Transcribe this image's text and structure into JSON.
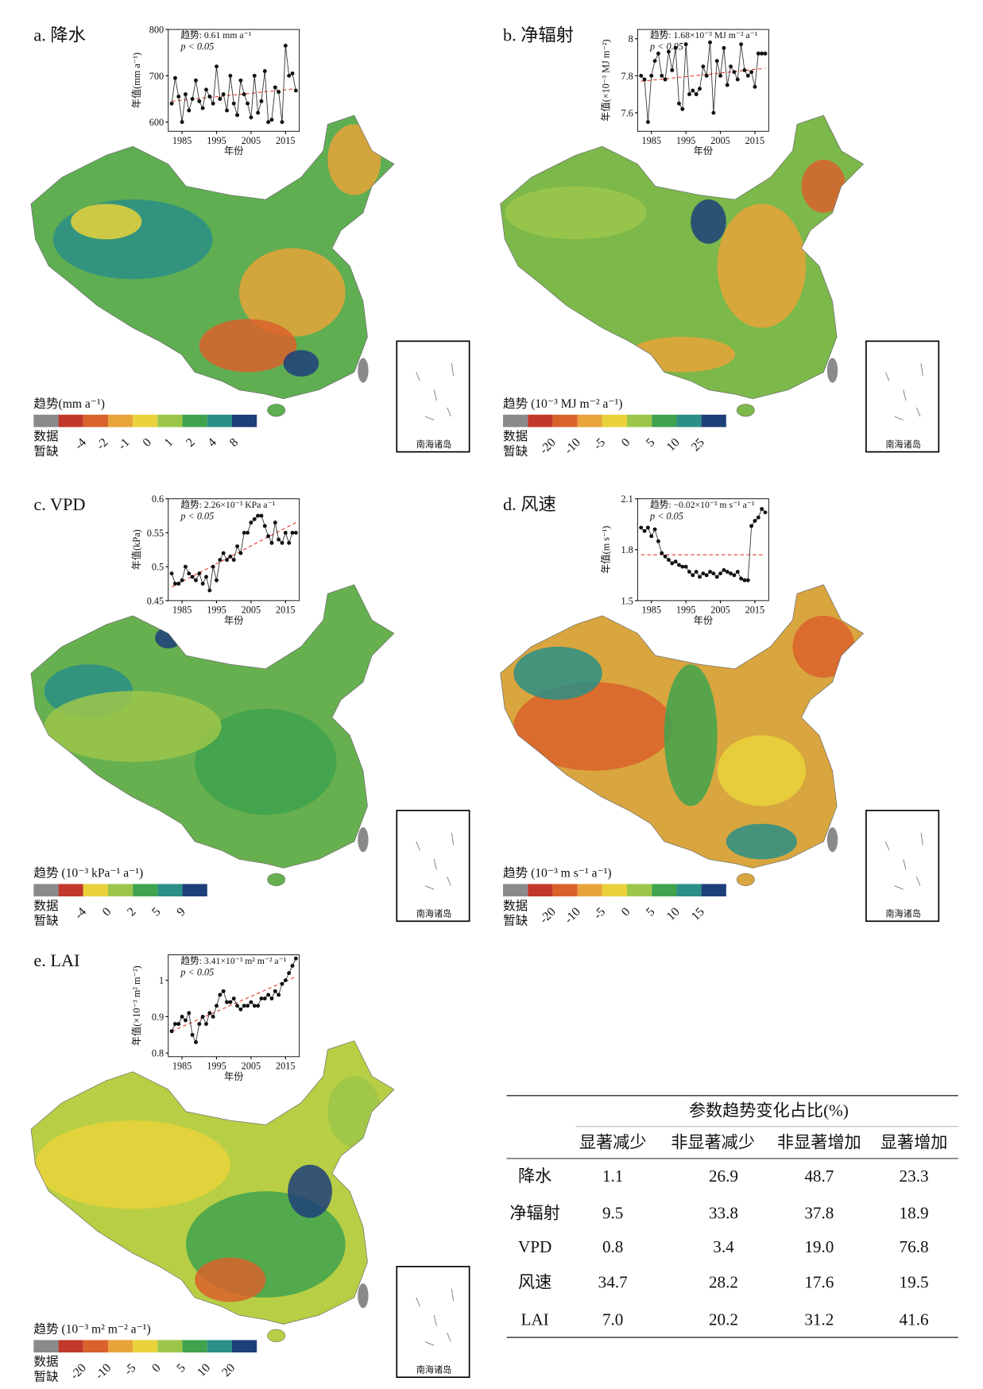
{
  "panels": [
    {
      "title": "a. 降水",
      "legend": {
        "label": "趋势(mm a⁻¹)",
        "missing": [
          "数据",
          "暂缺"
        ],
        "colors": [
          "#8a8a8a",
          "#c0392b",
          "#d9622b",
          "#e8a33a",
          "#e9d23b",
          "#9cc64a",
          "#3fa34d",
          "#2a8f86",
          "#1d3f7a"
        ],
        "ticks": [
          -4,
          -2,
          -1,
          0,
          1,
          2,
          4,
          8
        ]
      },
      "inset": {
        "type": "line",
        "stat": "趋势: 0.61 mm a⁻¹",
        "p": "p < 0.05",
        "ylabel": "年值(mm a⁻¹)",
        "xlabel": "年份",
        "xlim": [
          1981,
          2019
        ],
        "xticks": [
          1985,
          1995,
          2005,
          2015
        ],
        "ylim": [
          580,
          800
        ],
        "yticks": [
          600,
          700,
          800
        ],
        "x": [
          1982,
          1983,
          1984,
          1985,
          1986,
          1987,
          1988,
          1989,
          1990,
          1991,
          1992,
          1993,
          1994,
          1995,
          1996,
          1997,
          1998,
          1999,
          2000,
          2001,
          2002,
          2003,
          2004,
          2005,
          2006,
          2007,
          2008,
          2009,
          2010,
          2011,
          2012,
          2013,
          2014,
          2015,
          2016,
          2017,
          2018
        ],
        "values": [
          640,
          695,
          655,
          600,
          660,
          625,
          650,
          690,
          645,
          630,
          670,
          655,
          640,
          720,
          650,
          660,
          625,
          700,
          640,
          615,
          690,
          660,
          640,
          610,
          700,
          620,
          645,
          710,
          600,
          605,
          675,
          665,
          600,
          765,
          700,
          705,
          668
        ],
        "trend": [
          645,
          672
        ]
      }
    },
    {
      "title": "b. 净辐射",
      "legend": {
        "label": "趋势 (10⁻³ MJ m⁻² a⁻¹)",
        "missing": [
          "数据",
          "暂缺"
        ],
        "colors": [
          "#8a8a8a",
          "#c0392b",
          "#d9622b",
          "#e8a33a",
          "#e9d23b",
          "#9cc64a",
          "#3fa34d",
          "#2a8f86",
          "#1d3f7a"
        ],
        "ticks": [
          -20,
          -10,
          -5,
          0,
          5,
          10,
          25
        ]
      },
      "inset": {
        "type": "line",
        "stat": "趋势: 1.68×10⁻³ MJ m⁻² a⁻¹",
        "p": "p < 0.05",
        "ylabel": "年值(×10⁻³ MJ m⁻²)",
        "xlabel": "年份",
        "xlim": [
          1981,
          2019
        ],
        "xticks": [
          1985,
          1995,
          2005,
          2015
        ],
        "ylim": [
          7.5,
          8.05
        ],
        "yticks": [
          7.6,
          7.8,
          8.0
        ],
        "x": [
          1982,
          1983,
          1984,
          1985,
          1986,
          1987,
          1988,
          1989,
          1990,
          1991,
          1992,
          1993,
          1994,
          1995,
          1996,
          1997,
          1998,
          1999,
          2000,
          2001,
          2002,
          2003,
          2004,
          2005,
          2006,
          2007,
          2008,
          2009,
          2010,
          2011,
          2012,
          2013,
          2014,
          2015,
          2016,
          2017,
          2018
        ],
        "values": [
          7.8,
          7.78,
          7.55,
          7.8,
          7.88,
          7.92,
          7.8,
          7.78,
          7.93,
          7.83,
          7.95,
          7.65,
          7.62,
          7.97,
          7.7,
          7.72,
          7.7,
          7.73,
          7.85,
          7.8,
          7.98,
          7.6,
          7.88,
          7.8,
          7.95,
          7.75,
          7.85,
          7.82,
          7.78,
          7.97,
          7.83,
          7.8,
          7.82,
          7.74,
          7.92,
          7.92,
          7.92
        ],
        "trend": [
          7.77,
          7.84
        ]
      }
    },
    {
      "title": "c. VPD",
      "legend": {
        "label": "趋势 (10⁻³ kPa⁻¹ a⁻¹)",
        "missing": [
          "数据",
          "暂缺"
        ],
        "colors": [
          "#8a8a8a",
          "#c0392b",
          "#e9d23b",
          "#9cc64a",
          "#3fa34d",
          "#2a8f86",
          "#1d3f7a"
        ],
        "ticks": [
          -4,
          0,
          2,
          5,
          9
        ]
      },
      "inset": {
        "type": "line",
        "stat": "趋势: 2.26×10⁻³ KPa a⁻¹",
        "p": "p < 0.05",
        "ylabel": "年值(kPa)",
        "xlabel": "年份",
        "xlim": [
          1981,
          2019
        ],
        "xticks": [
          1985,
          1995,
          2005,
          2015
        ],
        "ylim": [
          0.45,
          0.6
        ],
        "yticks": [
          0.45,
          0.5,
          0.55,
          0.6
        ],
        "x": [
          1982,
          1983,
          1984,
          1985,
          1986,
          1987,
          1988,
          1989,
          1990,
          1991,
          1992,
          1993,
          1994,
          1995,
          1996,
          1997,
          1998,
          1999,
          2000,
          2001,
          2002,
          2003,
          2004,
          2005,
          2006,
          2007,
          2008,
          2009,
          2010,
          2011,
          2012,
          2013,
          2014,
          2015,
          2016,
          2017,
          2018
        ],
        "values": [
          0.49,
          0.475,
          0.475,
          0.48,
          0.5,
          0.49,
          0.485,
          0.48,
          0.49,
          0.475,
          0.485,
          0.465,
          0.5,
          0.48,
          0.51,
          0.52,
          0.51,
          0.515,
          0.51,
          0.53,
          0.52,
          0.55,
          0.55,
          0.565,
          0.57,
          0.575,
          0.575,
          0.56,
          0.545,
          0.535,
          0.565,
          0.54,
          0.535,
          0.55,
          0.535,
          0.55,
          0.55
        ],
        "trend": [
          0.47,
          0.565
        ]
      }
    },
    {
      "title": "d. 风速",
      "legend": {
        "label": "趋势 (10⁻³ m s⁻¹ a⁻¹)",
        "missing": [
          "数据",
          "暂缺"
        ],
        "colors": [
          "#8a8a8a",
          "#c0392b",
          "#d9622b",
          "#e8a33a",
          "#e9d23b",
          "#9cc64a",
          "#3fa34d",
          "#2a8f86",
          "#1d3f7a"
        ],
        "ticks": [
          -20,
          -10,
          -5,
          0,
          5,
          10,
          15
        ]
      },
      "inset": {
        "type": "line",
        "stat": "趋势: −0.02×10⁻³ m s⁻¹ a⁻¹",
        "p": "p < 0.05",
        "ylabel": "年值(m s⁻¹)",
        "xlabel": "年份",
        "xlim": [
          1981,
          2019
        ],
        "xticks": [
          1985,
          1995,
          2005,
          2015
        ],
        "ylim": [
          1.5,
          2.1
        ],
        "yticks": [
          1.5,
          1.8,
          2.1
        ],
        "x": [
          1982,
          1983,
          1984,
          1985,
          1986,
          1987,
          1988,
          1989,
          1990,
          1991,
          1992,
          1993,
          1994,
          1995,
          1996,
          1997,
          1998,
          1999,
          2000,
          2001,
          2002,
          2003,
          2004,
          2005,
          2006,
          2007,
          2008,
          2009,
          2010,
          2011,
          2012,
          2013,
          2014,
          2015,
          2016,
          2017,
          2018
        ],
        "values": [
          1.93,
          1.91,
          1.93,
          1.88,
          1.92,
          1.85,
          1.78,
          1.76,
          1.74,
          1.72,
          1.73,
          1.71,
          1.7,
          1.7,
          1.67,
          1.65,
          1.67,
          1.64,
          1.66,
          1.65,
          1.67,
          1.66,
          1.64,
          1.66,
          1.68,
          1.67,
          1.66,
          1.65,
          1.67,
          1.63,
          1.62,
          1.62,
          1.94,
          1.97,
          1.99,
          2.04,
          2.02
        ],
        "trend": [
          1.77,
          1.77
        ]
      }
    },
    {
      "title": "e. LAI",
      "legend": {
        "label": "趋势 (10⁻³ m² m⁻² a⁻¹)",
        "missing": [
          "数据",
          "暂缺"
        ],
        "colors": [
          "#8a8a8a",
          "#c0392b",
          "#d9622b",
          "#e8a33a",
          "#e9d23b",
          "#9cc64a",
          "#3fa34d",
          "#2a8f86",
          "#1d3f7a"
        ],
        "ticks": [
          -20,
          -10,
          -5,
          0,
          5,
          10,
          20
        ]
      },
      "inset": {
        "type": "line",
        "stat": "趋势: 3.41×10⁻³ m² m⁻² a⁻¹",
        "p": "p < 0.05",
        "ylabel": "年值(×10⁻³ m² m⁻²)",
        "xlabel": "年份",
        "xlim": [
          1981,
          2019
        ],
        "xticks": [
          1985,
          1995,
          2005,
          2015
        ],
        "ylim": [
          0.79,
          1.07
        ],
        "yticks": [
          0.8,
          0.9,
          1.0
        ],
        "x": [
          1982,
          1983,
          1984,
          1985,
          1986,
          1987,
          1988,
          1989,
          1990,
          1991,
          1992,
          1993,
          1994,
          1995,
          1996,
          1997,
          1998,
          1999,
          2000,
          2001,
          2002,
          2003,
          2004,
          2005,
          2006,
          2007,
          2008,
          2009,
          2010,
          2011,
          2012,
          2013,
          2014,
          2015,
          2016,
          2017,
          2018
        ],
        "values": [
          0.86,
          0.88,
          0.88,
          0.9,
          0.89,
          0.91,
          0.85,
          0.83,
          0.88,
          0.9,
          0.88,
          0.91,
          0.9,
          0.93,
          0.96,
          0.97,
          0.94,
          0.94,
          0.95,
          0.93,
          0.92,
          0.93,
          0.93,
          0.94,
          0.93,
          0.93,
          0.95,
          0.95,
          0.96,
          0.95,
          0.97,
          0.96,
          0.99,
          1.0,
          1.02,
          1.04,
          1.06
        ],
        "trend": [
          0.86,
          1.01
        ]
      }
    }
  ],
  "inset_map_label": "南海诸岛",
  "table": {
    "title": "参数趋势变化占比(%)",
    "header": [
      "显著减少",
      "非显著减少",
      "非显著增加",
      "显著增加"
    ],
    "rows": [
      [
        "降水",
        "1.1",
        "26.9",
        "48.7",
        "23.3"
      ],
      [
        "净辐射",
        "9.5",
        "33.8",
        "37.8",
        "18.9"
      ],
      [
        "VPD",
        "0.8",
        "3.4",
        "19.0",
        "76.8"
      ],
      [
        "风速",
        "34.7",
        "28.2",
        "17.6",
        "19.5"
      ],
      [
        "LAI",
        "7.0",
        "20.2",
        "31.2",
        "41.6"
      ]
    ]
  }
}
